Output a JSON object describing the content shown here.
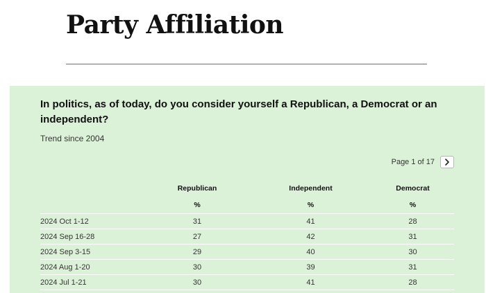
{
  "page": {
    "title": "Party Affiliation"
  },
  "panel": {
    "question": "In politics, as of today, do you consider yourself a Republican, a Democrat or an independent?",
    "subtitle": "Trend since 2004",
    "pager": {
      "text": "Page 1 of 17",
      "next_icon": "chevron-right-icon"
    }
  },
  "table": {
    "headers": [
      "",
      "Republican",
      "Independent",
      "Democrat"
    ],
    "units": [
      "",
      "%",
      "%",
      "%"
    ],
    "rows": [
      [
        "2024 Oct 1-12",
        "31",
        "41",
        "28"
      ],
      [
        "2024 Sep 16-28",
        "27",
        "42",
        "31"
      ],
      [
        "2024 Sep 3-15",
        "29",
        "40",
        "30"
      ],
      [
        "2024 Aug 1-20",
        "30",
        "39",
        "31"
      ],
      [
        "2024 Jul 1-21",
        "30",
        "41",
        "28"
      ]
    ]
  },
  "colors": {
    "panel_background": "#dcf2d8",
    "rule": "#6e6e6e"
  }
}
